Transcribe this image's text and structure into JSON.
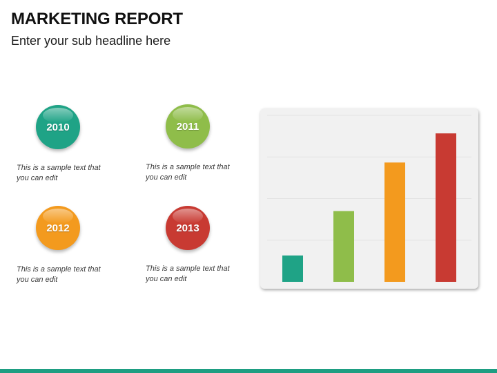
{
  "header": {
    "title": "MARKETING REPORT",
    "subtitle": "Enter your sub headline here"
  },
  "items": [
    {
      "year": "2010",
      "color": "#1fa386",
      "text_line1": "This is a sample text that",
      "text_line2": "you can edit"
    },
    {
      "year": "2011",
      "color": "#8fbd4a",
      "text_line1": "This is a sample text that",
      "text_line2": "you can edit"
    },
    {
      "year": "2012",
      "color": "#f39a1e",
      "text_line1": "This is a sample text that",
      "text_line2": "you can edit"
    },
    {
      "year": "2013",
      "color": "#c83a32",
      "text_line1": "This is a sample text that",
      "text_line2": "you can edit"
    }
  ],
  "chart_data": {
    "type": "bar",
    "categories": [
      "2010",
      "2011",
      "2012",
      "2013"
    ],
    "values": [
      19,
      51,
      86,
      107
    ],
    "colors": [
      "#1fa386",
      "#8fbd4a",
      "#f39a1e",
      "#c83a32"
    ],
    "title": "",
    "xlabel": "",
    "ylabel": "",
    "ylim": [
      0,
      120
    ],
    "grid": true,
    "legend": "none",
    "tick_labels_visible": false
  },
  "footer": {
    "accent_color": "#1e9e82"
  }
}
